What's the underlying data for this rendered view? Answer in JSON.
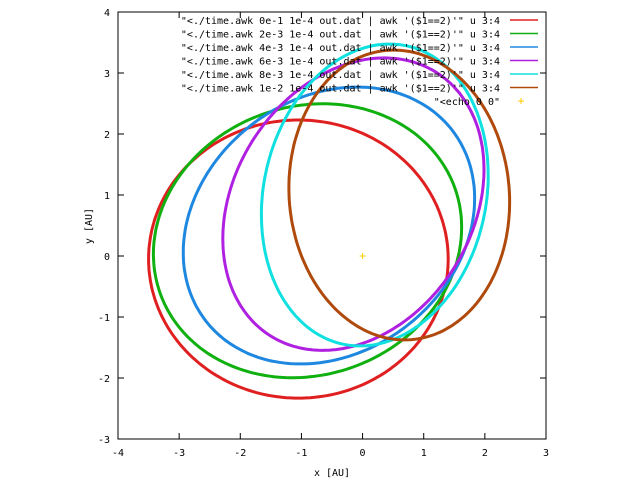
{
  "chart_data": {
    "type": "line",
    "xlabel": "x [AU]",
    "ylabel": "y [AU]",
    "xlim": [
      -4,
      3
    ],
    "ylim": [
      -3,
      4
    ],
    "xticks": [
      "-4",
      "-3",
      "-2",
      "-1",
      "0",
      "1",
      "2",
      "3"
    ],
    "yticks": [
      "-3",
      "-2",
      "-1",
      "0",
      "1",
      "2",
      "3",
      "4"
    ],
    "legend_position": "top-right",
    "grid": false,
    "series": [
      {
        "name": "\"<./time.awk 0e-1 1e-4 out.dat | awk '($1==2)'\" u 3:4",
        "color": "#e02020",
        "shape": "ellipse",
        "cx": -1.05,
        "cy": -0.05,
        "rx": 2.45,
        "ry": 2.28,
        "angle_deg": 0
      },
      {
        "name": "\"<./time.awk 2e-3 1e-4 out.dat | awk '($1==2)'\" u 3:4",
        "color": "#10b010",
        "shape": "ellipse",
        "cx": -0.9,
        "cy": 0.25,
        "rx": 2.56,
        "ry": 2.2,
        "angle_deg": 20
      },
      {
        "name": "\"<./time.awk 4e-3 1e-4 out.dat | awk '($1==2)'\" u 3:4",
        "color": "#1e88e0",
        "shape": "ellipse",
        "cx": -0.55,
        "cy": 0.5,
        "rx": 2.55,
        "ry": 2.08,
        "angle_deg": 38
      },
      {
        "name": "\"<./time.awk 6e-3 1e-4 out.dat | awk '($1==2)'\" u 3:4",
        "color": "#b020e0",
        "shape": "ellipse",
        "cx": -0.15,
        "cy": 0.85,
        "rx": 2.55,
        "ry": 1.95,
        "angle_deg": 58
      },
      {
        "name": "\"<./time.awk 8e-3 1e-4 out.dat | awk '($1==2)'\" u 3:4",
        "color": "#10e0e0",
        "shape": "ellipse",
        "cx": 0.2,
        "cy": 1.0,
        "rx": 2.5,
        "ry": 1.82,
        "angle_deg": 78
      },
      {
        "name": "\"<./time.awk 1e-2 1e-4 out.dat | awk '($1==2)'\" u 3:4",
        "color": "#b04a0c",
        "shape": "ellipse",
        "cx": 0.6,
        "cy": 1.0,
        "rx": 2.38,
        "ry": 1.8,
        "angle_deg": 95
      },
      {
        "name": "\"<echo 0 0\"",
        "color": "#ffcc00",
        "shape": "point",
        "x": [
          0
        ],
        "y": [
          0
        ]
      }
    ]
  }
}
